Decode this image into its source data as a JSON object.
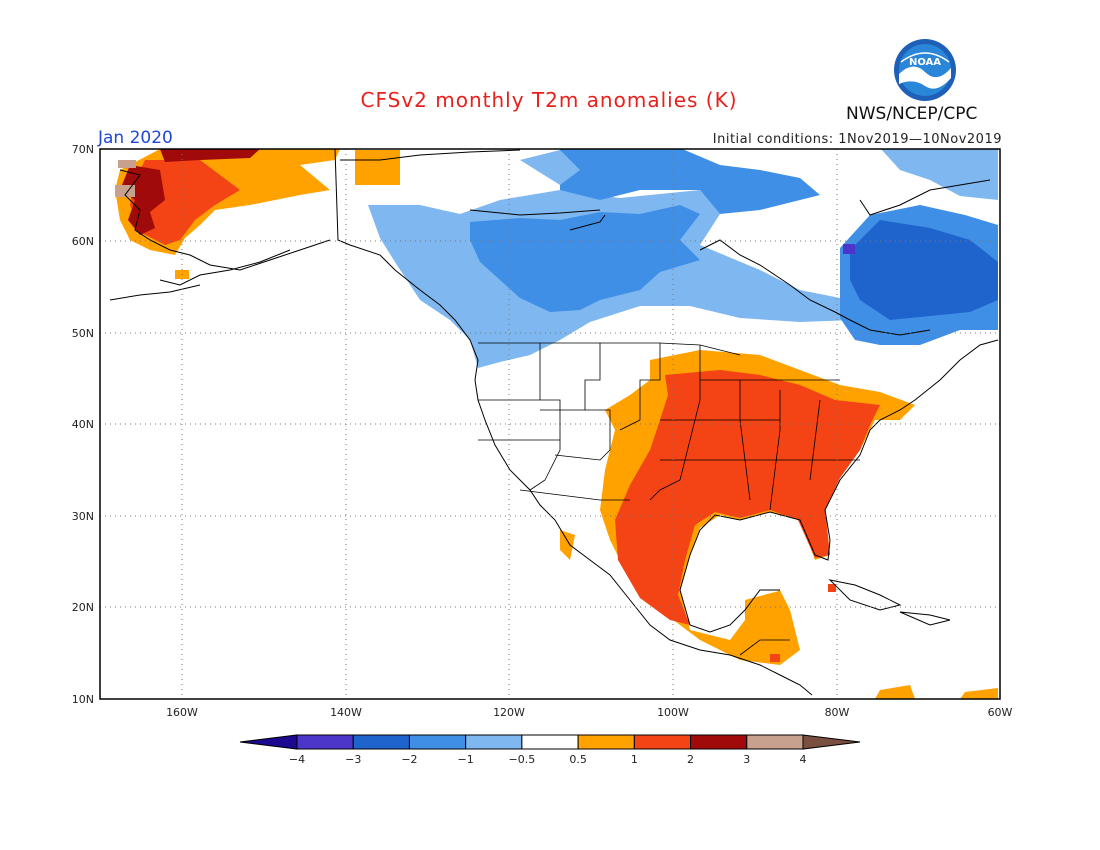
{
  "title": "CFSv2 monthly T2m anomalies (K)",
  "forecast_month": "Jan 2020",
  "initial_conditions": "Initial conditions: 1Nov2019—10Nov2019",
  "agency": "NWS/NCEP/CPC",
  "logo": {
    "text": "NOAA",
    "icon": "noaa-logo"
  },
  "map": {
    "projection": "lat-lon",
    "lon_range": [
      -170,
      -60
    ],
    "lat_range": [
      10,
      70
    ],
    "lat_labels": [
      "70N",
      "60N",
      "50N",
      "40N",
      "30N",
      "20N",
      "10N"
    ],
    "lon_labels": [
      "160W",
      "140W",
      "120W",
      "100W",
      "80W",
      "60W"
    ],
    "gridlines": "dotted"
  },
  "colorbar": {
    "levels": [
      "−4",
      "−3",
      "−2",
      "−1",
      "−0.5",
      "0.5",
      "1",
      "2",
      "3",
      "4"
    ],
    "colors": [
      "#1b0a8f",
      "#4c36c9",
      "#1f63cc",
      "#3f8fe6",
      "#7fb8f0",
      "#ffffff",
      "#ffa200",
      "#f44314",
      "#a10a0a",
      "#c7a08e",
      "#7b4f3f"
    ]
  },
  "regions": {
    "alaska_west": "warm",
    "western_canada": "cold",
    "eastern_canada": "cold",
    "central_eastern_us": "warm",
    "mexico": "warm",
    "central_america": "warm"
  }
}
